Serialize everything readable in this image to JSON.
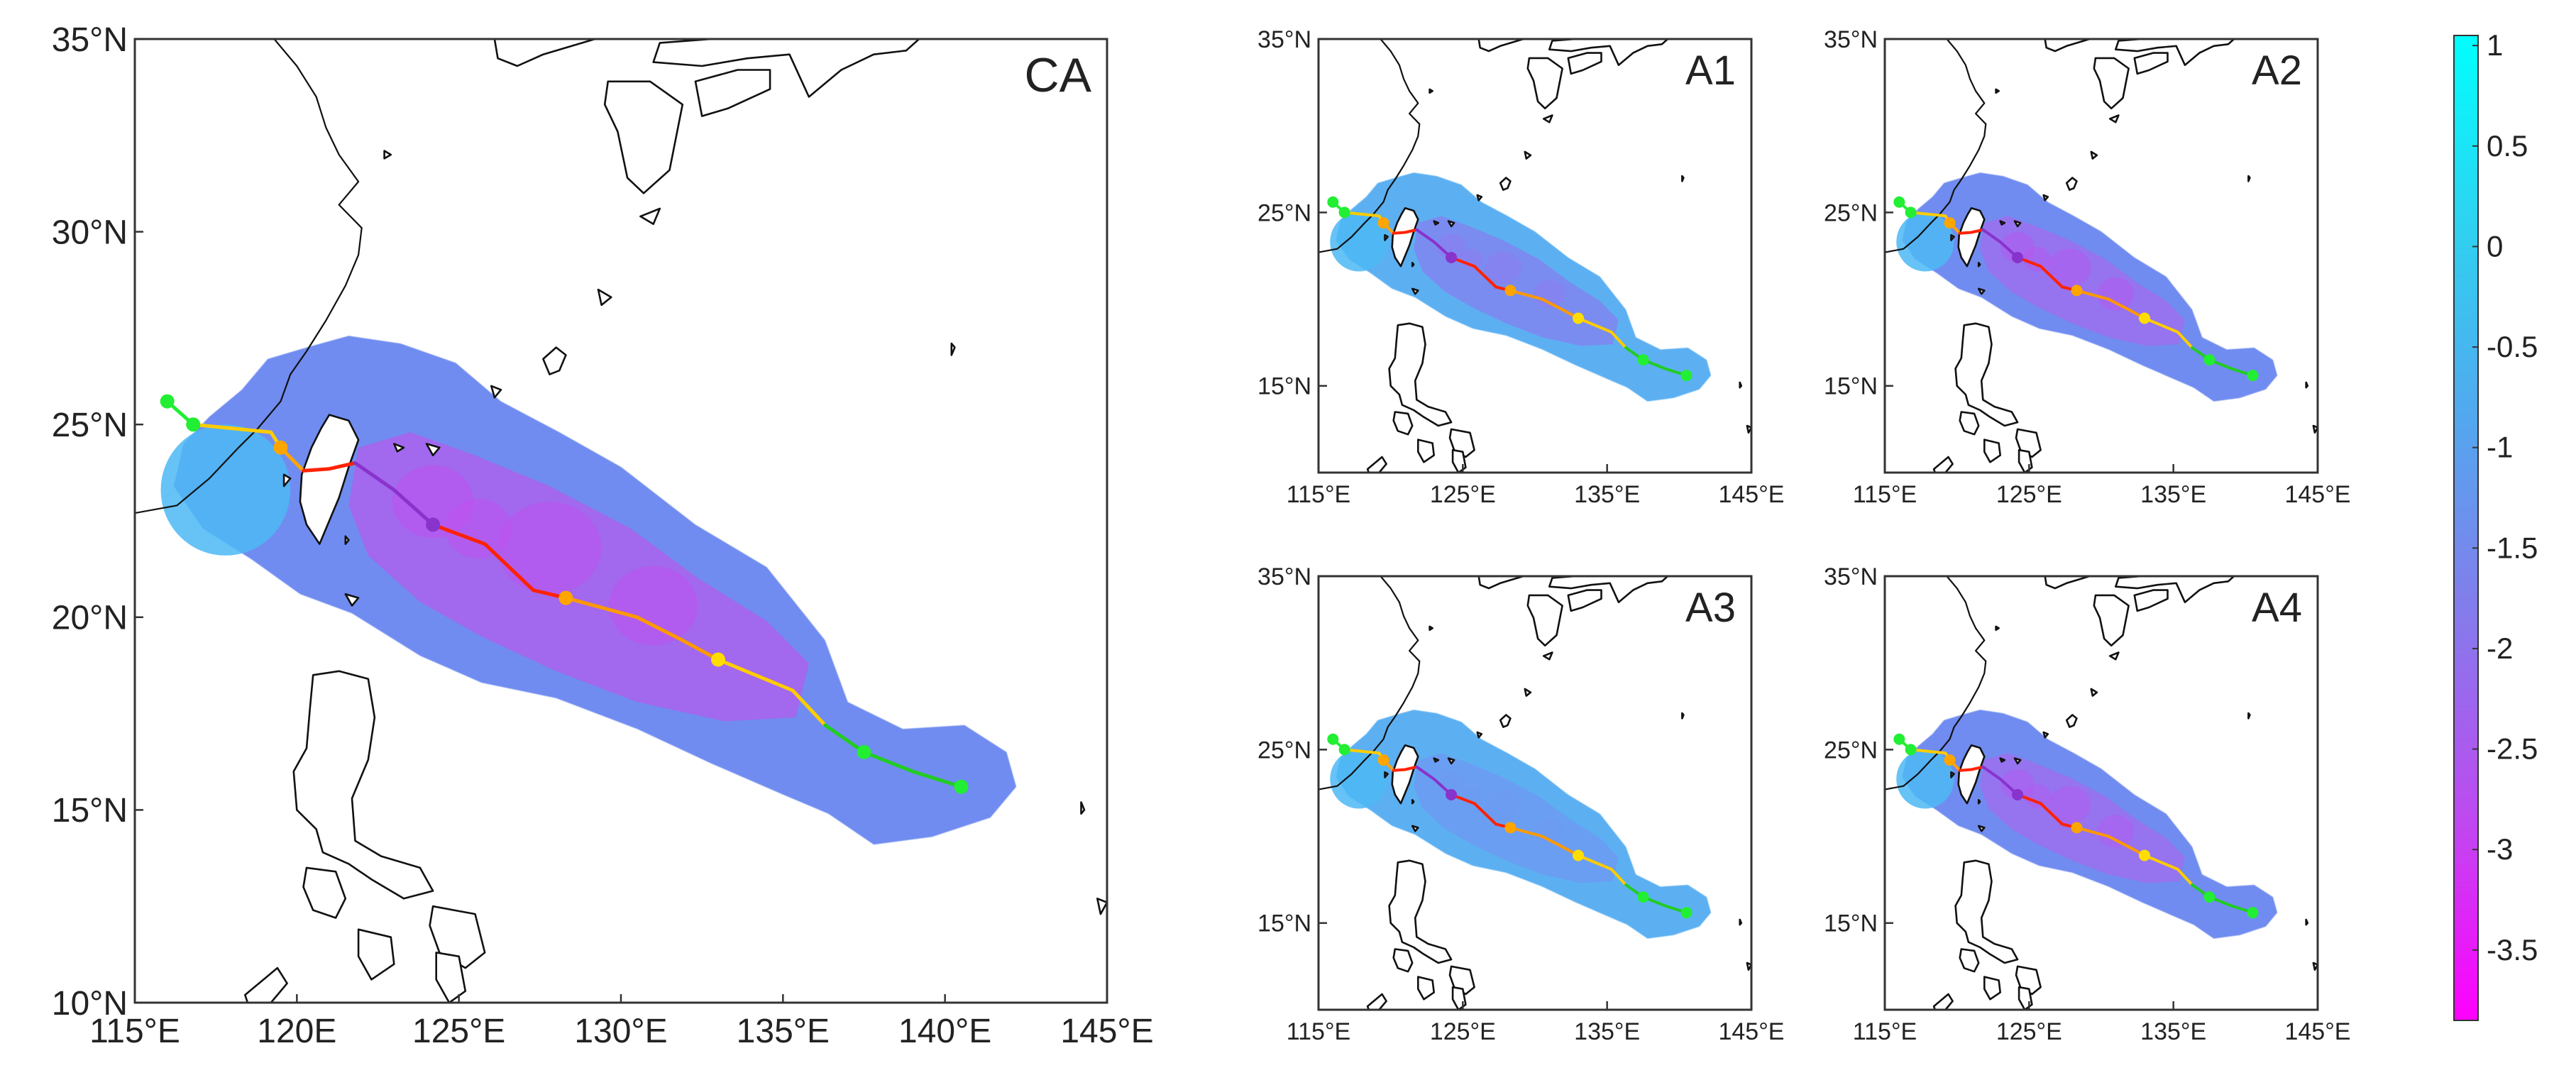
{
  "map": {
    "panels": [
      {
        "key": "CA",
        "label": "CA",
        "intensity": 1.35,
        "lon_ticks": [
          "115°E",
          "120E",
          "125°E",
          "130°E",
          "135°E",
          "140°E",
          "145°E"
        ],
        "lat_ticks": [
          "35°N",
          "30°N",
          "25°N",
          "20°N",
          "15°N",
          "10°N"
        ]
      },
      {
        "key": "A1",
        "label": "A1",
        "intensity": 0.75,
        "lon_ticks": [
          "115°E",
          "125°E",
          "135°E",
          "145°E"
        ],
        "lat_ticks": [
          "35°N",
          "25°N",
          "15°N"
        ]
      },
      {
        "key": "A2",
        "label": "A2",
        "intensity": 1.15,
        "lon_ticks": [
          "115°E",
          "125°E",
          "135°E",
          "145°E"
        ],
        "lat_ticks": [
          "35°N",
          "25°N",
          "15°N"
        ]
      },
      {
        "key": "A3",
        "label": "A3",
        "intensity": 0.55,
        "lon_ticks": [
          "115°E",
          "125°E",
          "135°E",
          "145°E"
        ],
        "lat_ticks": [
          "35°N",
          "25°N",
          "15°N"
        ]
      },
      {
        "key": "A4",
        "label": "A4",
        "intensity": 1.1,
        "lon_ticks": [
          "115°E",
          "125°E",
          "135°E",
          "145°E"
        ],
        "lat_ticks": [
          "35°N",
          "25°N",
          "15°N"
        ]
      }
    ],
    "colorbar": {
      "ticks": [
        "1",
        "0.5",
        "0",
        "-0.5",
        "-1",
        "-1.5",
        "-2",
        "-2.5",
        "-3",
        "-3.5"
      ],
      "range": [
        -3.85,
        1.05
      ],
      "colors": [
        "#00ffff",
        "#ff00ff"
      ]
    },
    "track": {
      "points": [
        [
          116.0,
          25.6
        ],
        [
          116.8,
          25.0
        ],
        [
          119.2,
          24.8
        ],
        [
          119.5,
          24.4
        ],
        [
          120.2,
          23.8
        ],
        [
          121.0,
          23.85
        ],
        [
          121.8,
          24.0
        ],
        [
          123.0,
          23.3
        ],
        [
          124.2,
          22.4
        ],
        [
          125.8,
          21.9
        ],
        [
          127.3,
          20.7
        ],
        [
          128.3,
          20.5
        ],
        [
          130.5,
          20.0
        ],
        [
          131.9,
          19.4
        ],
        [
          133.0,
          18.9
        ],
        [
          135.3,
          18.1
        ],
        [
          136.3,
          17.2
        ],
        [
          137.5,
          16.5
        ],
        [
          139.0,
          16.0
        ],
        [
          140.5,
          15.6
        ]
      ],
      "segment_colors": [
        "#22ee33",
        "#ffcc00",
        "#ffa500",
        "#ff2200",
        "#8833cc",
        "#ff2200",
        "#ff9900",
        "#ffcc00",
        "#22cc22"
      ],
      "segment_breaks": [
        1,
        3,
        4,
        6,
        8,
        11,
        14,
        16,
        19
      ],
      "markers": [
        {
          "lon": 116.0,
          "lat": 25.6,
          "color": "#22ee33"
        },
        {
          "lon": 116.8,
          "lat": 25.0,
          "color": "#22ee33"
        },
        {
          "lon": 119.5,
          "lat": 24.4,
          "color": "#ffa500"
        },
        {
          "lon": 124.2,
          "lat": 22.4,
          "color": "#8833cc"
        },
        {
          "lon": 128.3,
          "lat": 20.5,
          "color": "#ffa500"
        },
        {
          "lon": 133.0,
          "lat": 18.9,
          "color": "#ffdd00"
        },
        {
          "lon": 137.5,
          "lat": 16.5,
          "color": "#22ee33"
        },
        {
          "lon": 140.5,
          "lat": 15.6,
          "color": "#22ee33"
        }
      ]
    }
  }
}
